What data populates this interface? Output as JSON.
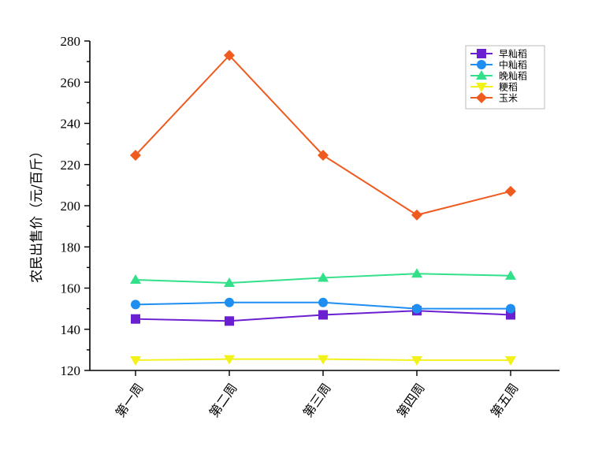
{
  "chart_data": {
    "type": "line",
    "title": "",
    "xlabel": "",
    "ylabel": "农民出售价（元/百斤）",
    "categories": [
      "第一周",
      "第二周",
      "第三周",
      "第四周",
      "第五周"
    ],
    "ylim": [
      120,
      280
    ],
    "yticks": [
      120,
      140,
      160,
      180,
      200,
      220,
      240,
      260,
      280
    ],
    "grid": false,
    "legend_position": "top-right",
    "series": [
      {
        "name": "早籼稻",
        "color": "#6a1fd1",
        "marker": "square",
        "values": [
          145,
          144,
          147,
          149,
          147
        ]
      },
      {
        "name": "中籼稻",
        "color": "#1f8ef1",
        "marker": "circle",
        "values": [
          152,
          153,
          153,
          150,
          150
        ]
      },
      {
        "name": "晚籼稻",
        "color": "#33e08a",
        "marker": "triangle",
        "values": [
          164,
          162.5,
          165,
          167,
          166
        ]
      },
      {
        "name": "粳稻",
        "color": "#f2f21a",
        "marker": "triangle-down",
        "values": [
          125,
          125.5,
          125.5,
          125,
          125
        ]
      },
      {
        "name": "玉米",
        "color": "#ef5a1f",
        "marker": "diamond",
        "values": [
          224.5,
          273,
          224.5,
          195.5,
          207
        ]
      }
    ]
  }
}
